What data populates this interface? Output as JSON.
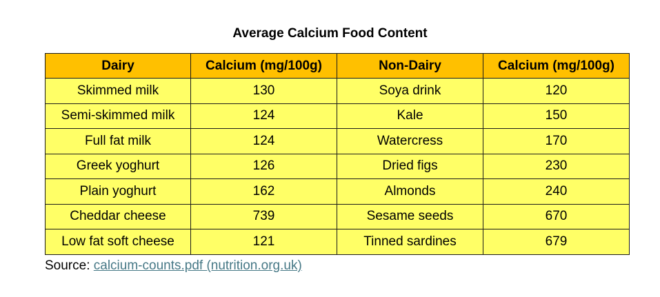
{
  "title": "Average Calcium Food Content",
  "table": {
    "headers": [
      "Dairy",
      "Calcium (mg/100g)",
      "Non-Dairy",
      "Calcium (mg/100g)"
    ],
    "rows": [
      [
        "Skimmed milk",
        "130",
        "Soya drink",
        "120"
      ],
      [
        "Semi-skimmed milk",
        "124",
        "Kale",
        "150"
      ],
      [
        "Full fat milk",
        "124",
        "Watercress",
        "170"
      ],
      [
        "Greek yoghurt",
        "126",
        "Dried figs",
        "230"
      ],
      [
        "Plain yoghurt",
        "162",
        "Almonds",
        "240"
      ],
      [
        "Cheddar cheese",
        "739",
        "Sesame seeds",
        "670"
      ],
      [
        "Low fat soft cheese",
        "121",
        "Tinned sardines",
        "679"
      ]
    ]
  },
  "source": {
    "label": "Source: ",
    "link_text": "calcium-counts.pdf (nutrition.org.uk)"
  },
  "colors": {
    "header_bg": "#ffc000",
    "cell_bg": "#ffff66",
    "link": "#467886",
    "border": "#1a1a1a"
  }
}
